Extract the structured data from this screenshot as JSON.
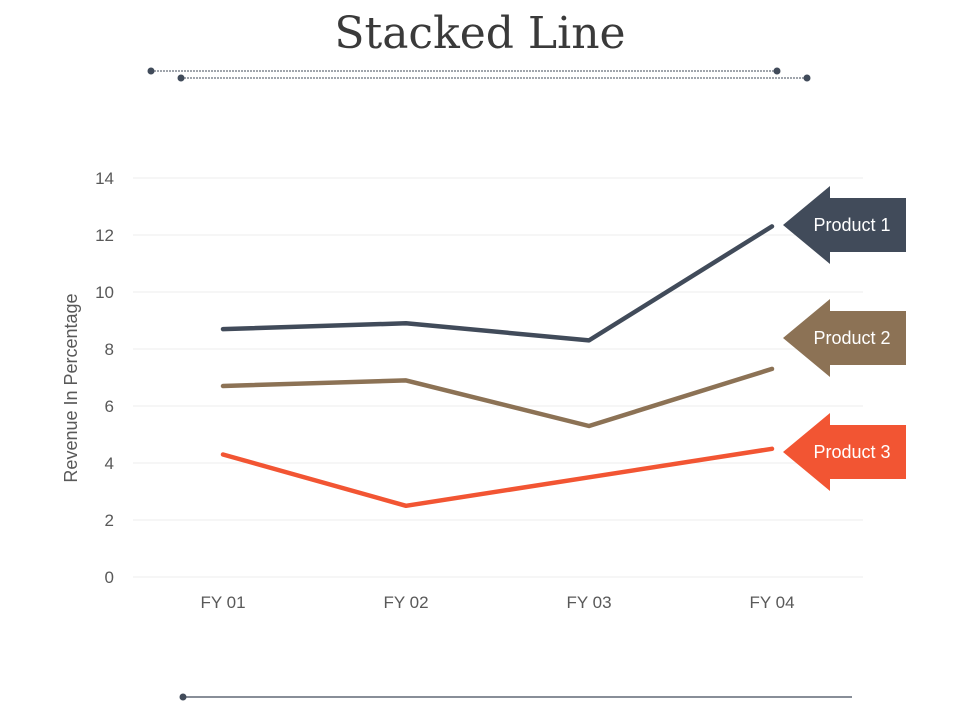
{
  "title": "Stacked Line",
  "chart_data": {
    "type": "line",
    "title": "Stacked Line",
    "xlabel": "",
    "ylabel": "Revenue In Percentage",
    "ylim": [
      0,
      14
    ],
    "yticks": [
      "0",
      "2",
      "4",
      "6",
      "8",
      "10",
      "12",
      "14"
    ],
    "categories": [
      "FY 01",
      "FY 02",
      "FY 03",
      "FY 04"
    ],
    "grid": true,
    "series": [
      {
        "name": "Product 1",
        "values": [
          8.7,
          8.9,
          8.3,
          12.3
        ],
        "color": "#414b5a"
      },
      {
        "name": "Product 2",
        "values": [
          6.7,
          6.9,
          5.3,
          7.3
        ],
        "color": "#8c7255"
      },
      {
        "name": "Product 3",
        "values": [
          4.3,
          2.5,
          3.5,
          4.5
        ],
        "color": "#f25533"
      }
    ]
  },
  "colors": {
    "decor_line": "#414b5a",
    "grid": "#ececec"
  }
}
